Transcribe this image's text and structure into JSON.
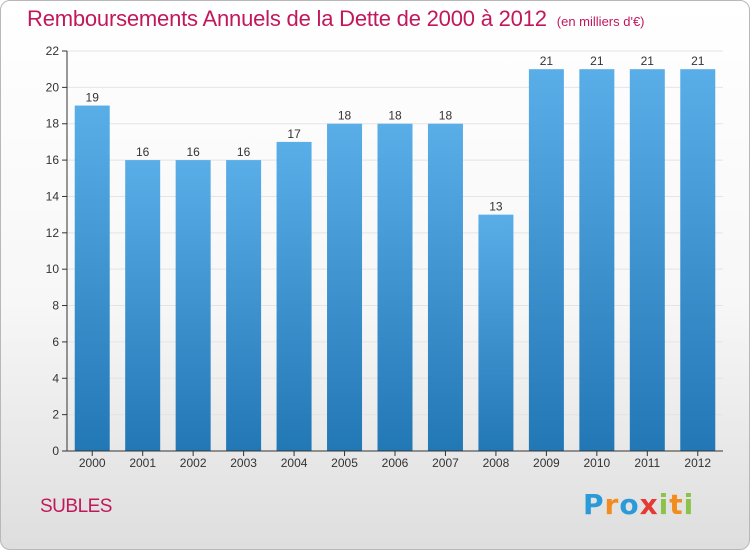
{
  "title": "Remboursements Annuels de la Dette de 2000 à 2012",
  "subtitle": "(en milliers d'€)",
  "place": "SUBLES",
  "logo": {
    "text": "Proxiti",
    "letters": [
      {
        "char": "P",
        "color": "#2b9ad8"
      },
      {
        "char": "r",
        "color": "#f28c1e"
      },
      {
        "char": "o",
        "color": "#2b9ad8"
      },
      {
        "char": "x",
        "color": "#e53935"
      },
      {
        "char": "i",
        "color": "#8bc34a"
      },
      {
        "char": "t",
        "color": "#f28c1e"
      },
      {
        "char": "i",
        "color": "#8bc34a"
      }
    ]
  },
  "colors": {
    "title": "#c2185b",
    "bar_top": "#5aaee8",
    "bar_bottom": "#2277b5",
    "grid": "#e4e4e4",
    "axis": "#333333"
  },
  "chart_data": {
    "type": "bar",
    "categories": [
      "2000",
      "2001",
      "2002",
      "2003",
      "2004",
      "2005",
      "2006",
      "2007",
      "2008",
      "2009",
      "2010",
      "2011",
      "2012"
    ],
    "values": [
      19,
      16,
      16,
      16,
      17,
      18,
      18,
      18,
      13,
      21,
      21,
      21,
      21
    ],
    "data_labels": [
      "19",
      "16",
      "16",
      "16",
      "17",
      "18",
      "18",
      "18",
      "13",
      "21",
      "21",
      "21",
      "21"
    ],
    "yticks": [
      0,
      2,
      4,
      6,
      8,
      10,
      12,
      14,
      16,
      18,
      20,
      22
    ],
    "ylim": [
      0,
      22
    ],
    "grid": true,
    "legend": "none"
  }
}
